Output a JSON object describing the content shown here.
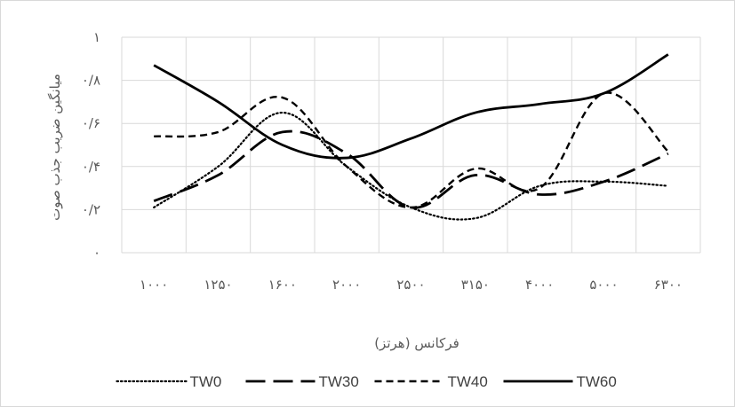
{
  "chart_data": {
    "type": "line",
    "categories": [
      "۱۰۰۰",
      "۱۲۵۰",
      "۱۶۰۰",
      "۲۰۰۰",
      "۲۵۰۰",
      "۳۱۵۰",
      "۴۰۰۰",
      "۵۰۰۰",
      "۶۳۰۰"
    ],
    "xlabel": "فرکانس (هرتز)",
    "ylabel": "میانگین ضریب جذب صوت",
    "ylim": [
      0,
      1
    ],
    "yticks": [
      0,
      0.2,
      0.4,
      0.6,
      0.8,
      1
    ],
    "ytick_labels": [
      "۰",
      "۰/۲",
      "۰/۴",
      "۰/۶",
      "۰/۸",
      "۱"
    ],
    "grid": true,
    "legend_position": "bottom",
    "series": [
      {
        "name": "TW0",
        "style": "dotted",
        "color": "#000000",
        "values": [
          0.21,
          0.4,
          0.65,
          0.4,
          0.21,
          0.16,
          0.31,
          0.33,
          0.31
        ]
      },
      {
        "name": "TW30",
        "style": "long-dash",
        "color": "#000000",
        "values": [
          0.24,
          0.36,
          0.56,
          0.46,
          0.21,
          0.36,
          0.27,
          0.33,
          0.46
        ]
      },
      {
        "name": "TW40",
        "style": "short-dash",
        "color": "#000000",
        "values": [
          0.54,
          0.56,
          0.72,
          0.4,
          0.21,
          0.39,
          0.3,
          0.74,
          0.47
        ]
      },
      {
        "name": "TW60",
        "style": "solid",
        "color": "#000000",
        "values": [
          0.87,
          0.7,
          0.5,
          0.44,
          0.53,
          0.65,
          0.69,
          0.74,
          0.92
        ]
      }
    ]
  }
}
